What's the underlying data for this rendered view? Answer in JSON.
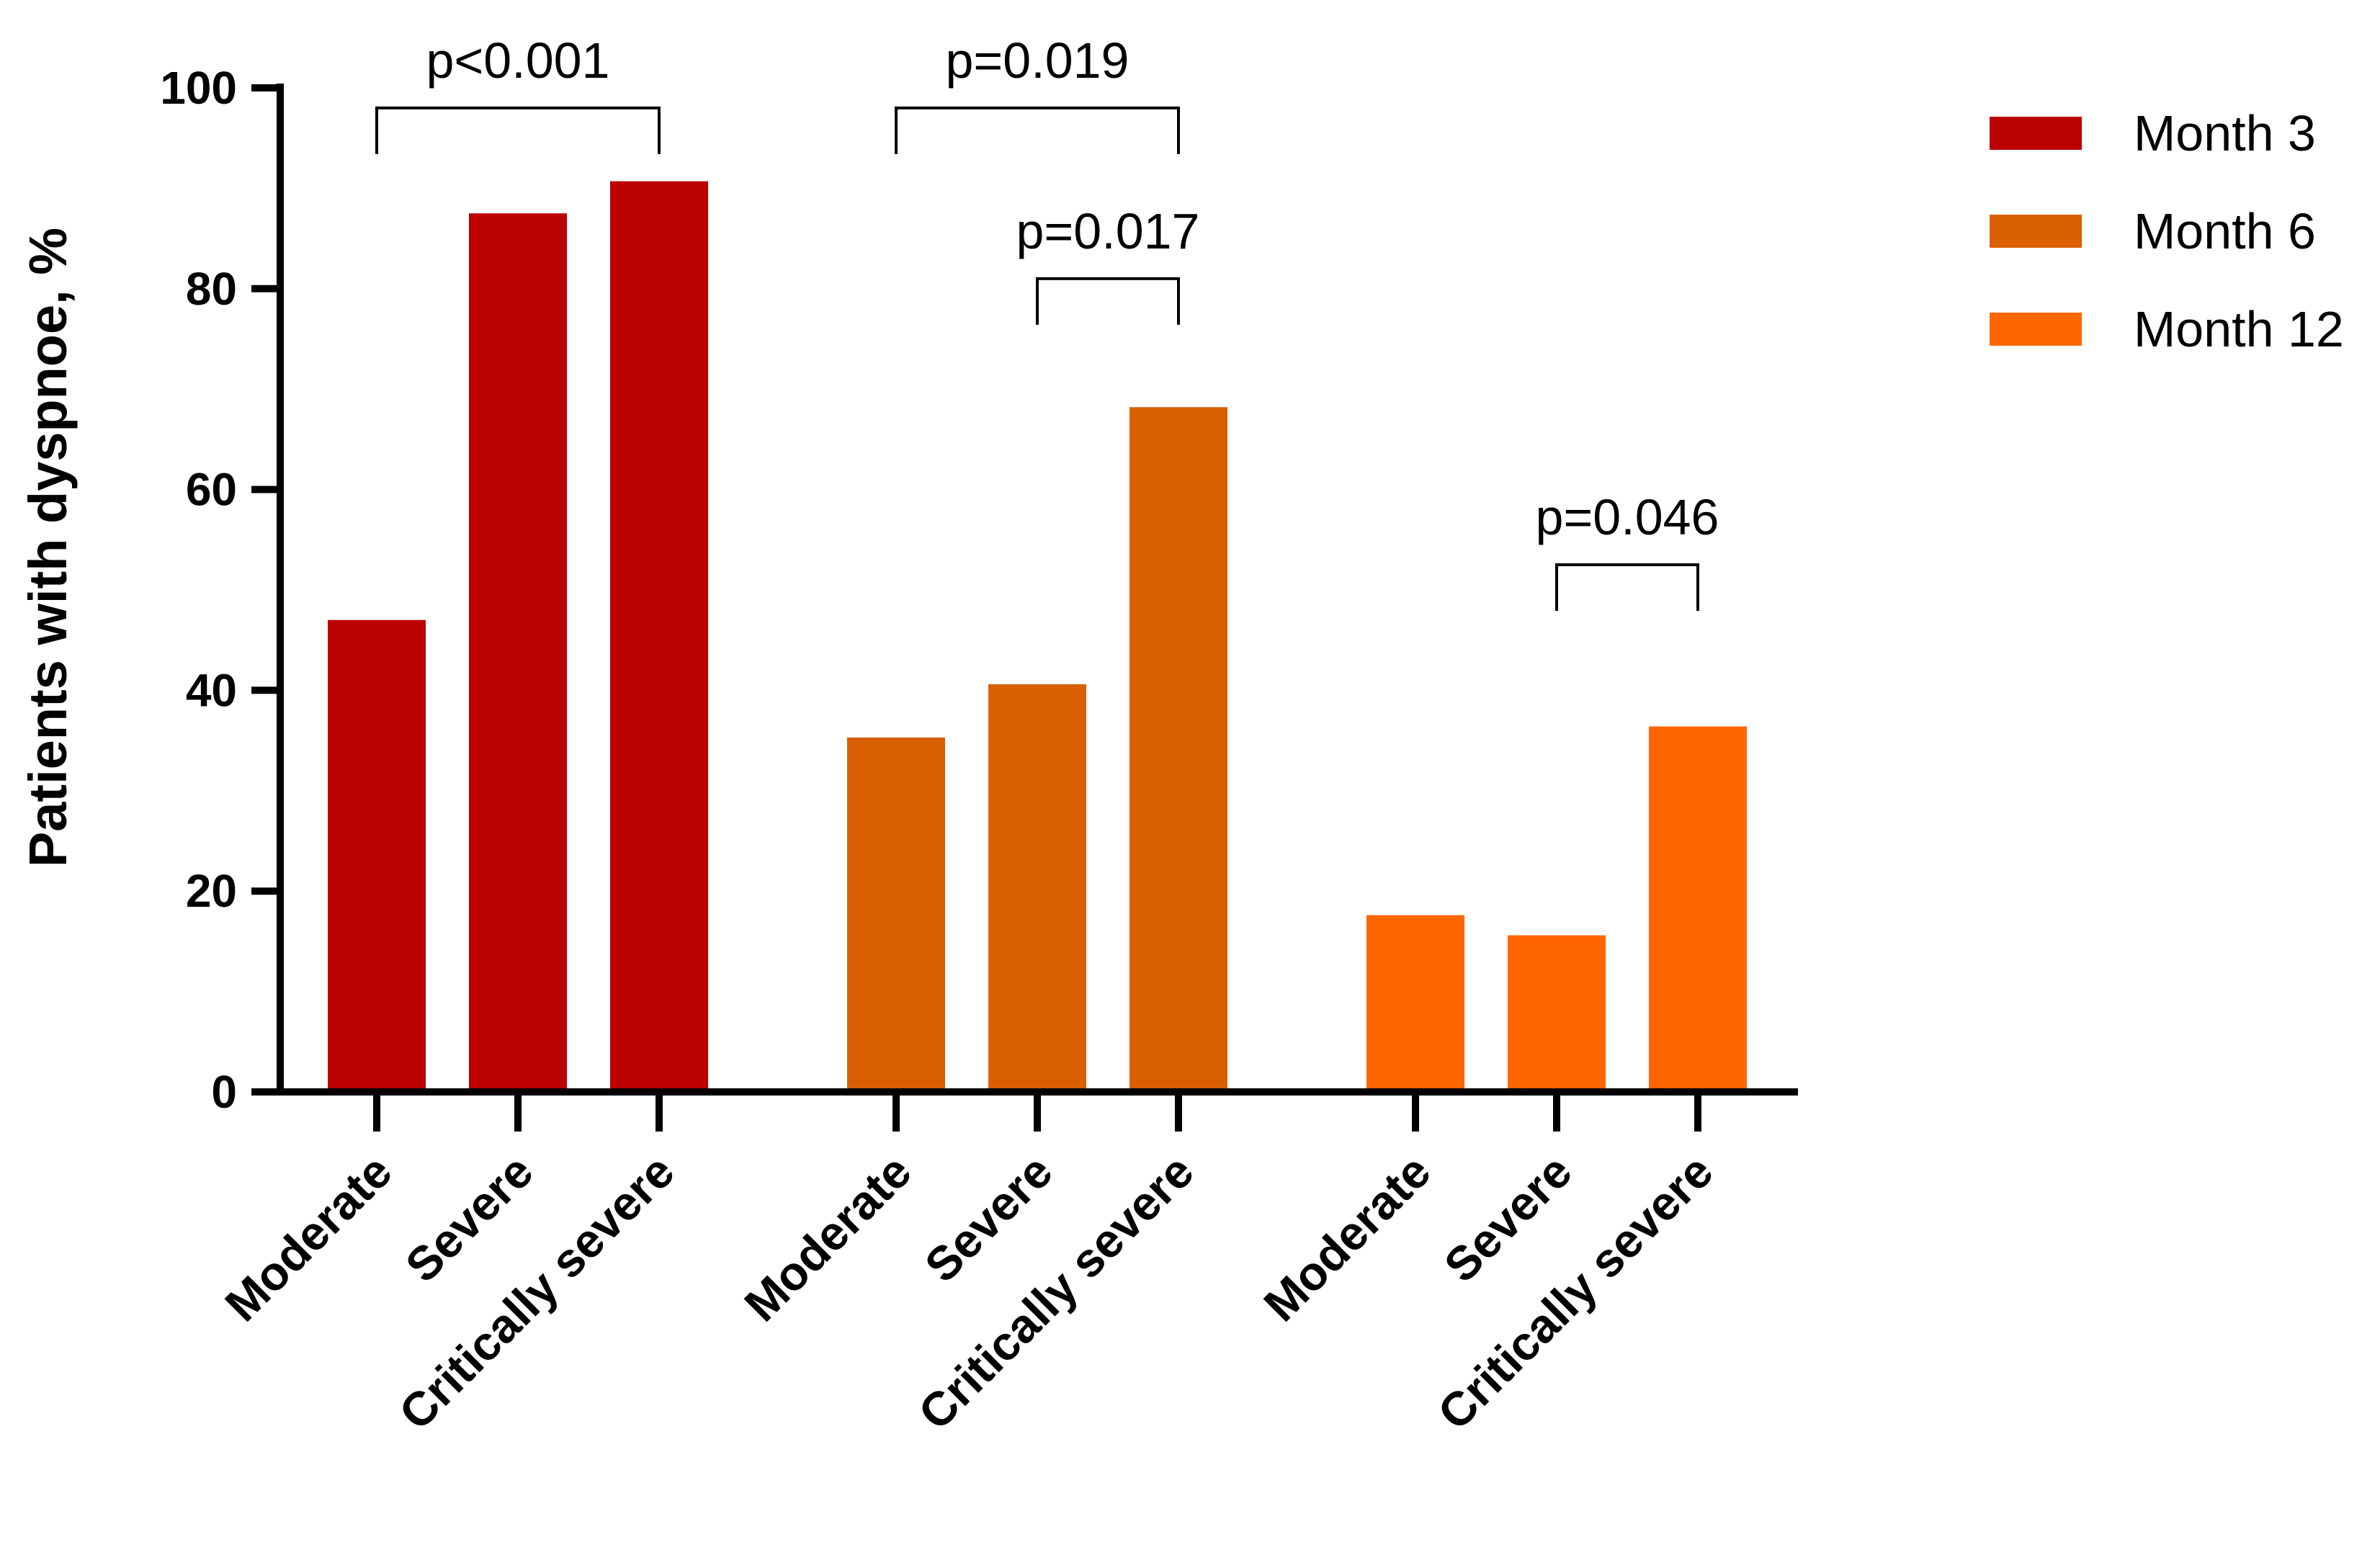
{
  "chart_data": {
    "type": "bar",
    "title": "",
    "xlabel": "",
    "ylabel": "Patients with dyspnoe, %",
    "ylim": [
      0,
      100
    ],
    "yticks": [
      0,
      20,
      40,
      60,
      80,
      100
    ],
    "categories": [
      "Moderate",
      "Severe",
      "Critically severe"
    ],
    "series": [
      {
        "name": "Month 3",
        "color": "#BB0000",
        "values": [
          47,
          87.5,
          90.7
        ]
      },
      {
        "name": "Month 6",
        "color": "#D95F00",
        "values": [
          35.3,
          40.6,
          68.2
        ]
      },
      {
        "name": "Month 12",
        "color": "#FF6600",
        "values": [
          17.6,
          15.6,
          36.4
        ]
      }
    ],
    "annotations": [
      {
        "series": 0,
        "from": 0,
        "to": 2,
        "level": 98,
        "text": "p<0.001"
      },
      {
        "series": 1,
        "from": 0,
        "to": 2,
        "level": 98,
        "text": "p=0.019"
      },
      {
        "series": 1,
        "from": 1,
        "to": 2,
        "level": 81,
        "text": "p=0.017"
      },
      {
        "series": 2,
        "from": 1,
        "to": 2,
        "level": 52.5,
        "text": "p=0.046"
      }
    ],
    "legend_position": "top-right",
    "grid": false
  }
}
